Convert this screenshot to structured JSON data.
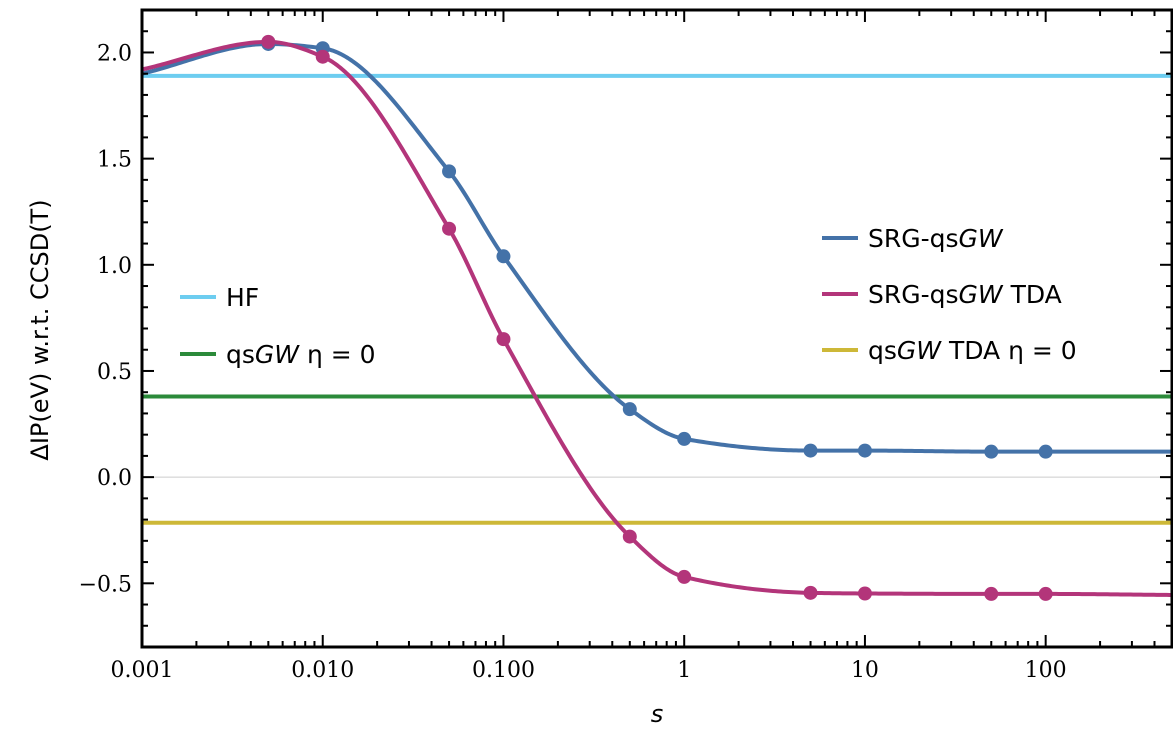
{
  "chart_data": {
    "type": "line",
    "xscale": "log",
    "xlim": [
      0.001,
      500
    ],
    "ylim": [
      -0.8,
      2.2
    ],
    "xlabel": "s",
    "ylabel": "ΔIP(eV) w.r.t. CCSD(T)",
    "x_ticks": [
      {
        "value": 0.001,
        "label": "0.001"
      },
      {
        "value": 0.01,
        "label": "0.010"
      },
      {
        "value": 0.1,
        "label": "0.100"
      },
      {
        "value": 1,
        "label": "1"
      },
      {
        "value": 10,
        "label": "10"
      },
      {
        "value": 100,
        "label": "100"
      }
    ],
    "y_ticks": [
      {
        "value": 2.0,
        "label": "2.0"
      },
      {
        "value": 1.5,
        "label": "1.5"
      },
      {
        "value": 1.0,
        "label": "1.0"
      },
      {
        "value": 0.5,
        "label": "0.5"
      },
      {
        "value": 0.0,
        "label": "0.0"
      },
      {
        "value": -0.5,
        "label": "−0.5"
      }
    ],
    "zero_line": true,
    "series": [
      {
        "name": "SRG-qsGW",
        "label_plain": "SRG-qs",
        "label_italic": "GW",
        "label_suffix": "",
        "color": "#4472a8",
        "markers": true,
        "x": [
          0.001,
          0.005,
          0.01,
          0.05,
          0.1,
          0.5,
          1,
          5,
          10,
          50,
          100,
          500
        ],
        "y": [
          1.9,
          2.04,
          2.02,
          1.44,
          1.04,
          0.32,
          0.18,
          0.125,
          0.125,
          0.12,
          0.12,
          0.12
        ],
        "marker_x": [
          0.005,
          0.01,
          0.05,
          0.1,
          0.5,
          1,
          5,
          10,
          50,
          100
        ]
      },
      {
        "name": "SRG-qsGW TDA",
        "label_plain": "SRG-qs",
        "label_italic": "GW",
        "label_suffix": " TDA",
        "color": "#b3357a",
        "markers": true,
        "x": [
          0.001,
          0.005,
          0.01,
          0.05,
          0.1,
          0.5,
          1,
          5,
          10,
          50,
          100,
          500
        ],
        "y": [
          1.92,
          2.05,
          1.98,
          1.17,
          0.65,
          -0.28,
          -0.47,
          -0.545,
          -0.548,
          -0.55,
          -0.55,
          -0.555
        ],
        "marker_x": [
          0.005,
          0.01,
          0.05,
          0.1,
          0.5,
          1,
          5,
          10,
          50,
          100
        ]
      }
    ],
    "reference_lines": [
      {
        "name": "HF",
        "label_plain": "HF",
        "label_italic": "",
        "label_suffix": "",
        "color": "#6dcdf0",
        "y": 1.89
      },
      {
        "name": "qsGW η = 0",
        "label_plain": "qs",
        "label_italic": "GW",
        "label_suffix": " η = 0",
        "color": "#2b8a3a",
        "y": 0.38
      },
      {
        "name": "qsGW TDA η = 0",
        "label_plain": "qs",
        "label_italic": "GW",
        "label_suffix": " TDA η = 0",
        "color": "#cdb838",
        "y": -0.215
      }
    ],
    "legends": [
      {
        "placement": "center-left",
        "entries": [
          "HF",
          "qsGW η = 0"
        ]
      },
      {
        "placement": "center-right",
        "entries": [
          "SRG-qsGW",
          "SRG-qsGW TDA",
          "qsGW TDA η = 0"
        ]
      }
    ]
  }
}
